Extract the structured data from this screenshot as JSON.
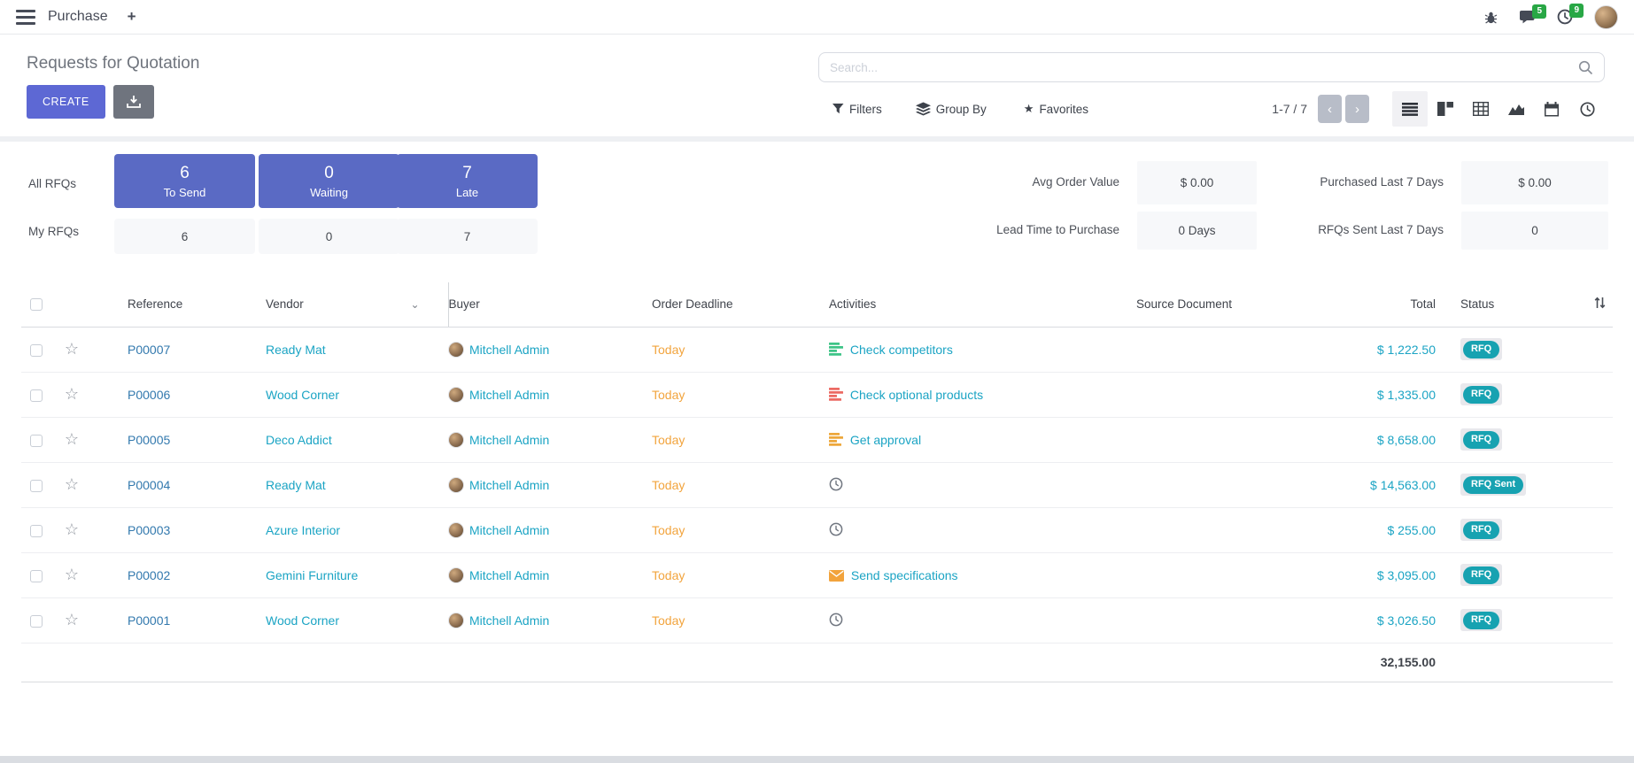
{
  "topbar": {
    "app_name": "Purchase",
    "plus": "+",
    "chat_badge": "5",
    "activity_badge": "9"
  },
  "control": {
    "title": "Requests for Quotation",
    "create_label": "CREATE",
    "search_placeholder": "Search...",
    "filters_label": "Filters",
    "group_by_label": "Group By",
    "favorites_label": "Favorites",
    "pager": "1-7 / 7"
  },
  "dashboard": {
    "all_label": "All RFQs",
    "my_label": "My RFQs",
    "buttons": [
      {
        "value": "6",
        "label": "To Send"
      },
      {
        "value": "0",
        "label": "Waiting"
      },
      {
        "value": "7",
        "label": "Late"
      }
    ],
    "my_values": [
      "6",
      "0",
      "7"
    ],
    "kpis": [
      {
        "label": "Avg Order Value",
        "value": "$ 0.00"
      },
      {
        "label": "Purchased Last 7 Days",
        "value": "$ 0.00"
      },
      {
        "label": "Lead Time to Purchase",
        "value": "0 Days"
      },
      {
        "label": "RFQs Sent Last 7 Days",
        "value": "0"
      }
    ]
  },
  "table": {
    "headers": [
      "Reference",
      "Vendor",
      "Buyer",
      "Order Deadline",
      "Activities",
      "Source Document",
      "Total",
      "Status"
    ],
    "rows": [
      {
        "reference": "P00007",
        "vendor": "Ready Mat",
        "buyer": "Mitchell Admin",
        "deadline": "Today",
        "activity": {
          "type": "tasks",
          "color": "#3ec487",
          "label": "Check competitors"
        },
        "source": "",
        "total": "$ 1,222.50",
        "status": "RFQ"
      },
      {
        "reference": "P00006",
        "vendor": "Wood Corner",
        "buyer": "Mitchell Admin",
        "deadline": "Today",
        "activity": {
          "type": "tasks",
          "color": "#ec6a63",
          "label": "Check optional products"
        },
        "source": "",
        "total": "$ 1,335.00",
        "status": "RFQ"
      },
      {
        "reference": "P00005",
        "vendor": "Deco Addict",
        "buyer": "Mitchell Admin",
        "deadline": "Today",
        "activity": {
          "type": "tasks",
          "color": "#eda73b",
          "label": "Get approval"
        },
        "source": "",
        "total": "$ 8,658.00",
        "status": "RFQ"
      },
      {
        "reference": "P00004",
        "vendor": "Ready Mat",
        "buyer": "Mitchell Admin",
        "deadline": "Today",
        "activity": {
          "type": "clock",
          "color": "#707680",
          "label": ""
        },
        "source": "",
        "total": "$ 14,563.00",
        "status": "RFQ Sent"
      },
      {
        "reference": "P00003",
        "vendor": "Azure Interior",
        "buyer": "Mitchell Admin",
        "deadline": "Today",
        "activity": {
          "type": "clock",
          "color": "#707680",
          "label": ""
        },
        "source": "",
        "total": "$ 255.00",
        "status": "RFQ"
      },
      {
        "reference": "P00002",
        "vendor": "Gemini Furniture",
        "buyer": "Mitchell Admin",
        "deadline": "Today",
        "activity": {
          "type": "envelope",
          "color": "#f2a33c",
          "label": "Send specifications"
        },
        "source": "",
        "total": "$ 3,095.00",
        "status": "RFQ"
      },
      {
        "reference": "P00001",
        "vendor": "Wood Corner",
        "buyer": "Mitchell Admin",
        "deadline": "Today",
        "activity": {
          "type": "clock",
          "color": "#707680",
          "label": ""
        },
        "source": "",
        "total": "$ 3,026.50",
        "status": "RFQ"
      }
    ],
    "sum_total": "32,155.00"
  },
  "colors": {
    "accent": "#5d68d4",
    "kpi_blue": "#5a6ac4",
    "link_blue": "#3379ae",
    "link_teal": "#1ba4c4",
    "orange": "#f2a43d",
    "badge_teal": "#17a2b1",
    "badge_green": "#28a745"
  }
}
